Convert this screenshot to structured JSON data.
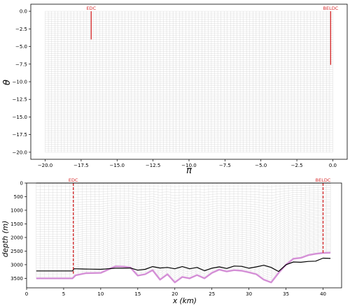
{
  "chart_data": [
    {
      "type": "line",
      "xlabel": "π",
      "ylabel": "θ",
      "xlim": [
        -21,
        1
      ],
      "ylim": [
        -21,
        1
      ],
      "y_inverted": false,
      "grid": true,
      "xticks": [
        -20.0,
        -17.5,
        -15.0,
        -12.5,
        -10.0,
        -7.5,
        -5.0,
        -2.5,
        0.0
      ],
      "xtick_labels": [
        "−20.0",
        "−17.5",
        "−15.0",
        "−12.5",
        "−10.0",
        "−7.5",
        "−5.0",
        "−2.5",
        "0.0"
      ],
      "yticks": [
        0.0,
        -2.5,
        -5.0,
        -7.5,
        -10.0,
        -12.5,
        -15.0,
        -17.5,
        -20.0
      ],
      "ytick_labels": [
        "0.0",
        "−2.5",
        "−5.0",
        "−7.5",
        "−10.0",
        "−12.5",
        "−15.0",
        "−17.5",
        "−20.0"
      ],
      "mesh": {
        "x": [
          -20,
          0
        ],
        "y": [
          -20,
          0
        ]
      },
      "markers": [
        {
          "label": "EDC",
          "x": -16.8,
          "y": [
            0,
            -4
          ]
        },
        {
          "label": "BELDC",
          "x": -0.15,
          "y": [
            0,
            -7.6
          ]
        }
      ],
      "colors": {
        "marker": "#d62728",
        "grid": "#cfcfcf"
      }
    },
    {
      "type": "line",
      "xlabel": "x (km)",
      "ylabel": "depth (m)",
      "xlim": [
        0,
        42.5
      ],
      "ylim": [
        0,
        3850
      ],
      "y_inverted": true,
      "grid": true,
      "xticks": [
        0,
        5,
        10,
        15,
        20,
        25,
        30,
        35,
        40
      ],
      "xtick_labels": [
        "0",
        "5",
        "10",
        "15",
        "20",
        "25",
        "30",
        "35",
        "40"
      ],
      "yticks": [
        0,
        500,
        1000,
        1500,
        2000,
        2500,
        3000,
        3500
      ],
      "ytick_labels": [
        "0",
        "500",
        "1000",
        "1500",
        "2000",
        "2500",
        "3000",
        "3500"
      ],
      "surface": {
        "x": [
          1.3,
          41.0
        ],
        "y": [
          0,
          0
        ]
      },
      "markers": [
        {
          "label": "EDC",
          "x": 6.3,
          "y": [
            0,
            3330
          ]
        },
        {
          "label": "BELDC",
          "x": 40.0,
          "y": [
            0,
            2600
          ]
        }
      ],
      "series": [
        {
          "x": [
            1.3,
            6.2,
            6.4,
            8,
            10,
            11,
            12,
            13,
            14,
            15,
            16,
            17,
            18,
            19,
            20,
            21,
            22,
            23,
            24,
            25,
            26,
            27,
            28,
            29,
            30,
            31,
            32,
            33,
            34,
            35,
            36,
            37,
            38,
            39,
            40,
            41
          ],
          "y": [
            3230,
            3230,
            3150,
            3160,
            3170,
            3150,
            3130,
            3130,
            3120,
            3200,
            3170,
            3070,
            3120,
            3100,
            3150,
            3070,
            3150,
            3100,
            3220,
            3130,
            3080,
            3140,
            3050,
            3060,
            3130,
            3080,
            3020,
            3100,
            3250,
            3000,
            2900,
            2910,
            2880,
            2870,
            2760,
            2770
          ]
        },
        {
          "x": [
            1.3,
            6.2,
            6.6,
            8,
            10,
            11,
            12,
            13,
            14,
            15,
            16,
            17,
            18,
            19,
            20,
            21,
            22,
            23,
            24,
            25,
            26,
            27,
            28,
            29,
            30,
            31,
            32,
            33,
            34,
            35,
            36,
            37,
            38,
            39,
            40,
            41
          ],
          "y": [
            3500,
            3500,
            3390,
            3310,
            3300,
            3180,
            3060,
            3070,
            3100,
            3400,
            3350,
            3200,
            3550,
            3350,
            3650,
            3450,
            3500,
            3380,
            3500,
            3300,
            3180,
            3250,
            3200,
            3220,
            3280,
            3350,
            3550,
            3650,
            3300,
            3000,
            2780,
            2750,
            2650,
            2600,
            2570,
            2560
          ]
        }
      ],
      "colors": {
        "surface": "#000000",
        "bed": "#d48fd6",
        "ice_base": "#000000",
        "marker": "#d62728",
        "grid": "#cfcfcf"
      }
    }
  ]
}
